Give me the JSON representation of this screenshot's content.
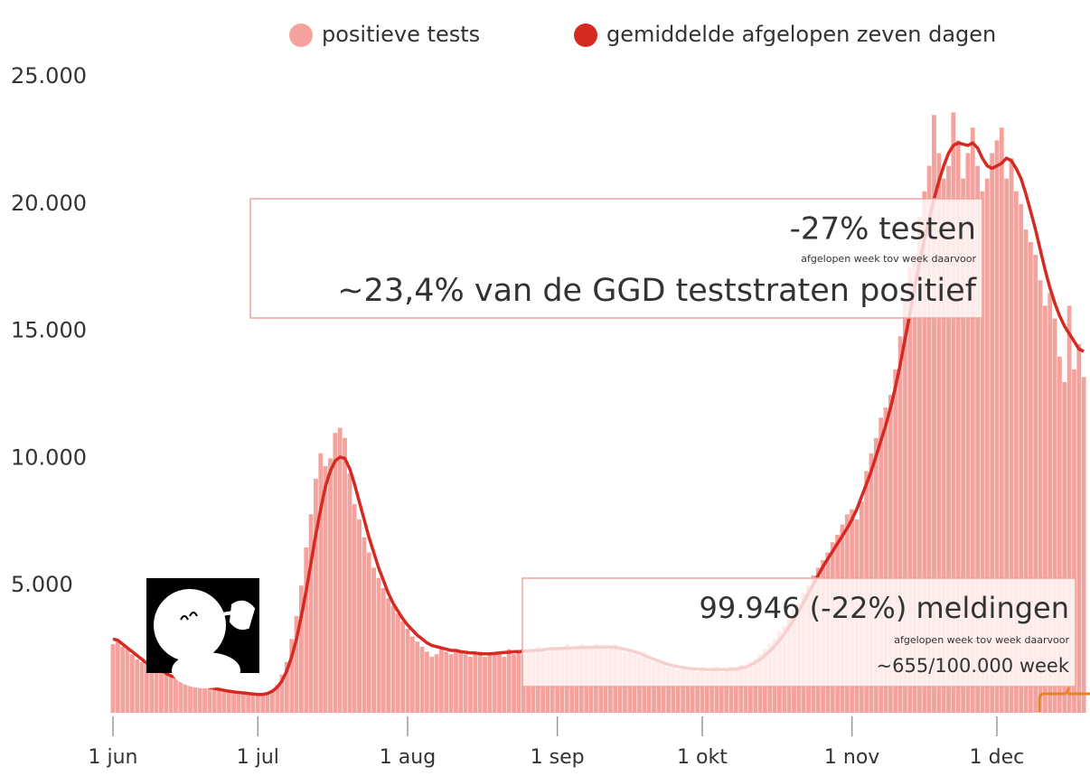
{
  "chart_data": {
    "type": "bar",
    "legend": "top-right",
    "categories": [
      "1 jun",
      null,
      null,
      null,
      null,
      null,
      null,
      null,
      null,
      null,
      null,
      null,
      null,
      null,
      null,
      null,
      null,
      null,
      null,
      null,
      null,
      null,
      null,
      null,
      null,
      null,
      null,
      null,
      null,
      null,
      "1 jul",
      null,
      null,
      null,
      null,
      null,
      null,
      null,
      null,
      null,
      null,
      null,
      null,
      null,
      null,
      null,
      null,
      null,
      null,
      null,
      null,
      null,
      null,
      null,
      null,
      null,
      null,
      null,
      null,
      null,
      null,
      "1 aug",
      null,
      null,
      null,
      null,
      null,
      null,
      null,
      null,
      null,
      null,
      null,
      null,
      null,
      null,
      null,
      null,
      null,
      null,
      null,
      null,
      null,
      null,
      null,
      null,
      null,
      null,
      null,
      null,
      null,
      null,
      "1 sep",
      null,
      null,
      null,
      null,
      null,
      null,
      null,
      null,
      null,
      null,
      null,
      null,
      null,
      null,
      null,
      null,
      null,
      null,
      null,
      null,
      null,
      null,
      null,
      null,
      null,
      null,
      null,
      null,
      null,
      "1 okt",
      null,
      null,
      null,
      null,
      null,
      null,
      null,
      null,
      null,
      null,
      null,
      null,
      null,
      null,
      null,
      null,
      null,
      null,
      null,
      null,
      null,
      null,
      null,
      null,
      null,
      null,
      null,
      null,
      null,
      null,
      "1 nov",
      null,
      null,
      null,
      null,
      null,
      null,
      null,
      null,
      null,
      null,
      null,
      null,
      null,
      null,
      null,
      null,
      null,
      null,
      null,
      null,
      null,
      null,
      null,
      null,
      null,
      null,
      null,
      null,
      null,
      "1 dec",
      null,
      null,
      null,
      null,
      null,
      null,
      null,
      null,
      null,
      null,
      null,
      null,
      null,
      null,
      null,
      null,
      null,
      null
    ],
    "series": [
      {
        "name": "positieve tests",
        "color": "#f4a29d",
        "type": "bar",
        "values": [
          2700,
          2800,
          2600,
          2500,
          2300,
          2100,
          2000,
          1900,
          1800,
          1700,
          1600,
          1500,
          1400,
          1350,
          1300,
          1250,
          1200,
          1100,
          1050,
          1000,
          950,
          900,
          880,
          850,
          820,
          800,
          780,
          760,
          740,
          720,
          700,
          750,
          800,
          900,
          1100,
          1500,
          2000,
          2900,
          3800,
          5000,
          6500,
          7800,
          9200,
          10200,
          9700,
          10000,
          11000,
          11200,
          10800,
          9400,
          8200,
          7600,
          6900,
          6300,
          5700,
          5300,
          4900,
          4500,
          4200,
          3900,
          3600,
          3300,
          3000,
          2800,
          2600,
          2400,
          2200,
          2300,
          2500,
          2400,
          2300,
          2500,
          2400,
          2300,
          2200,
          2300,
          2400,
          2200,
          2300,
          2400,
          2300,
          2200,
          2500,
          2300,
          2400,
          2300,
          2500,
          2400,
          2600,
          2500,
          2400,
          2600,
          2500,
          2600,
          2700,
          2500,
          2600,
          2700,
          2500,
          2600,
          2700,
          2600,
          2500,
          2600,
          2700,
          2500,
          2400,
          2500,
          2300,
          2200,
          2400,
          2100,
          2000,
          2100,
          1900,
          1800,
          1900,
          1700,
          1800,
          1700,
          1700,
          1600,
          1700,
          1600,
          1700,
          1800,
          1600,
          1700,
          1800,
          1700,
          1900,
          1800,
          2000,
          2100,
          2300,
          2500,
          2700,
          2900,
          3200,
          3400,
          3700,
          4000,
          4300,
          4700,
          5000,
          5400,
          5700,
          6000,
          6300,
          6700,
          7000,
          7400,
          7800,
          8000,
          7600,
          8300,
          9500,
          10200,
          10800,
          11600,
          12000,
          12500,
          13500,
          14800,
          16200,
          17500,
          18000,
          19500,
          20500,
          21500,
          23500,
          22000,
          21000,
          21500,
          23600,
          22500,
          21000,
          22000,
          23000,
          21500,
          20500,
          21000,
          22000,
          22500,
          23000,
          21000,
          21800,
          20500,
          20000,
          19000,
          18500,
          18000,
          17000,
          16000,
          16500,
          15500,
          14000,
          13000,
          16000,
          13500,
          14500,
          13200
        ]
      },
      {
        "name": "gemiddelde afgelopen zeven dagen",
        "color": "#d42a22",
        "type": "line",
        "values": [
          2900,
          2850,
          2700,
          2550,
          2400,
          2250,
          2100,
          1950,
          1850,
          1750,
          1650,
          1550,
          1450,
          1400,
          1300,
          1250,
          1200,
          1150,
          1100,
          1050,
          1000,
          950,
          920,
          880,
          850,
          820,
          800,
          780,
          760,
          740,
          720,
          720,
          760,
          850,
          1000,
          1250,
          1650,
          2200,
          2900,
          3800,
          4800,
          5900,
          7000,
          8000,
          8900,
          9500,
          9900,
          10050,
          10000,
          9600,
          9000,
          8300,
          7600,
          6900,
          6300,
          5700,
          5200,
          4700,
          4300,
          4000,
          3700,
          3450,
          3250,
          3050,
          2900,
          2750,
          2650,
          2600,
          2550,
          2500,
          2450,
          2450,
          2400,
          2380,
          2350,
          2350,
          2320,
          2320,
          2320,
          2330,
          2350,
          2370,
          2380,
          2400,
          2400,
          2420,
          2430,
          2450,
          2460,
          2480,
          2500,
          2510,
          2520,
          2530,
          2540,
          2550,
          2560,
          2560,
          2570,
          2570,
          2580,
          2580,
          2580,
          2580,
          2560,
          2540,
          2500,
          2450,
          2400,
          2330,
          2250,
          2180,
          2100,
          2030,
          1960,
          1900,
          1850,
          1810,
          1780,
          1750,
          1730,
          1720,
          1710,
          1700,
          1700,
          1700,
          1700,
          1700,
          1710,
          1720,
          1750,
          1800,
          1880,
          1980,
          2100,
          2250,
          2420,
          2620,
          2850,
          3100,
          3380,
          3680,
          4000,
          4350,
          4700,
          5050,
          5400,
          5750,
          6050,
          6350,
          6650,
          6950,
          7250,
          7600,
          8000,
          8500,
          9000,
          9500,
          10100,
          10700,
          11300,
          12000,
          12800,
          13700,
          14700,
          15700,
          16700,
          17700,
          18600,
          19400,
          20200,
          20900,
          21500,
          22000,
          22300,
          22400,
          22350,
          22300,
          22400,
          22200,
          21800,
          21500,
          21400,
          21500,
          21600,
          21800,
          21700,
          21400,
          21000,
          20400,
          19700,
          19000,
          18200,
          17400,
          16700,
          16100,
          15600,
          15200,
          14900,
          14600,
          14300,
          14200
        ]
      }
    ],
    "ylim": [
      0,
      25000
    ],
    "yticks": [
      {
        "value": 5000,
        "label": "5.000"
      },
      {
        "value": 10000,
        "label": "10.000"
      },
      {
        "value": 15000,
        "label": "15.000"
      },
      {
        "value": 20000,
        "label": "20.000"
      },
      {
        "value": 25000,
        "label": "25.000"
      }
    ],
    "grid": false,
    "annotations": [
      {
        "lines": [
          "-27% testen",
          "afgelopen week tov week daarvoor",
          "~23,4% van de GGD teststraten positief"
        ]
      },
      {
        "lines": [
          "99.946 (-22%) meldingen",
          "afgelopen week tov week daarvoor",
          "~655/100.000 week"
        ]
      }
    ]
  }
}
